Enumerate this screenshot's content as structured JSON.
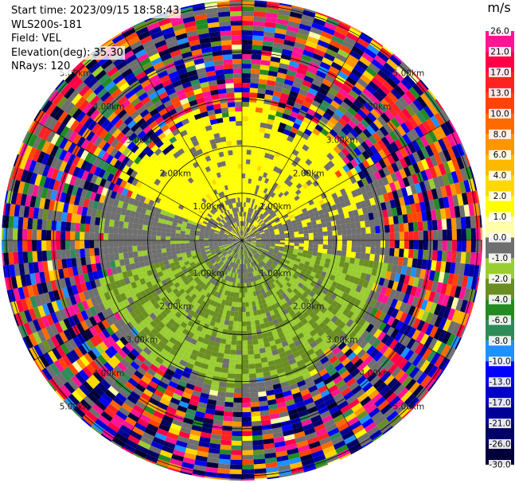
{
  "header": {
    "start_time": "Start time: 2023/09/15 18:58:43",
    "instrument": "WLS200s-181",
    "field": "Field: VEL",
    "elevation": "Elevation(deg): 35.30",
    "nrays": "NRays: 120"
  },
  "colorbar": {
    "unit": "m/s",
    "ticks": [
      "26.0",
      "21.0",
      "17.0",
      "13.0",
      "10.0",
      "8.0",
      "6.0",
      "4.0",
      "2.0",
      "1.0",
      "0.0",
      "-1.0",
      "-2.0",
      "-4.0",
      "-6.0",
      "-8.0",
      "-10.0",
      "-13.0",
      "-17.0",
      "-21.0",
      "-26.0",
      "-30.0"
    ],
    "colors": [
      "#ff1493",
      "#ff0044",
      "#ff2222",
      "#ff4400",
      "#ff6a00",
      "#ff9500",
      "#ffb800",
      "#ffd800",
      "#ffff00",
      "#ffffaa",
      "#6f6f6f",
      "#9acd32",
      "#6b8e23",
      "#228b22",
      "#2e8b57",
      "#1e90ff",
      "#0000ff",
      "#0000cd",
      "#000099",
      "#000066",
      "#00003a"
    ]
  },
  "chart_data": {
    "type": "heatmap",
    "subtype": "polar-ppi",
    "title": "",
    "field": "VEL",
    "nrays": 120,
    "range_ring_labels": [
      "1.00km",
      "2.00km",
      "3.00km",
      "4.00km",
      "5.00km"
    ],
    "range_rings_km": [
      1,
      2,
      3,
      4,
      5
    ],
    "max_range_km": 5.1,
    "spoke_count": 12,
    "regions": [
      {
        "description": "inner clutter",
        "range_km": [
          0,
          0.9
        ],
        "value_ms": 0.0
      },
      {
        "description": "approaching sector (north)",
        "azimuth_deg": [
          292,
          65
        ],
        "range_km": [
          0.6,
          2.6
        ],
        "value_ms": 2.0
      },
      {
        "description": "receding sector (south)",
        "azimuth_deg": [
          100,
          255
        ],
        "range_km": [
          0.5,
          3.1
        ],
        "value_ms": -1.5
      },
      {
        "description": "side sectors",
        "range_km": [
          0.5,
          2.9
        ],
        "value_ms": 0.0
      },
      {
        "description": "noise beyond valid range",
        "range_km": [
          2.6,
          5.1
        ],
        "value_ms": "random"
      }
    ]
  }
}
